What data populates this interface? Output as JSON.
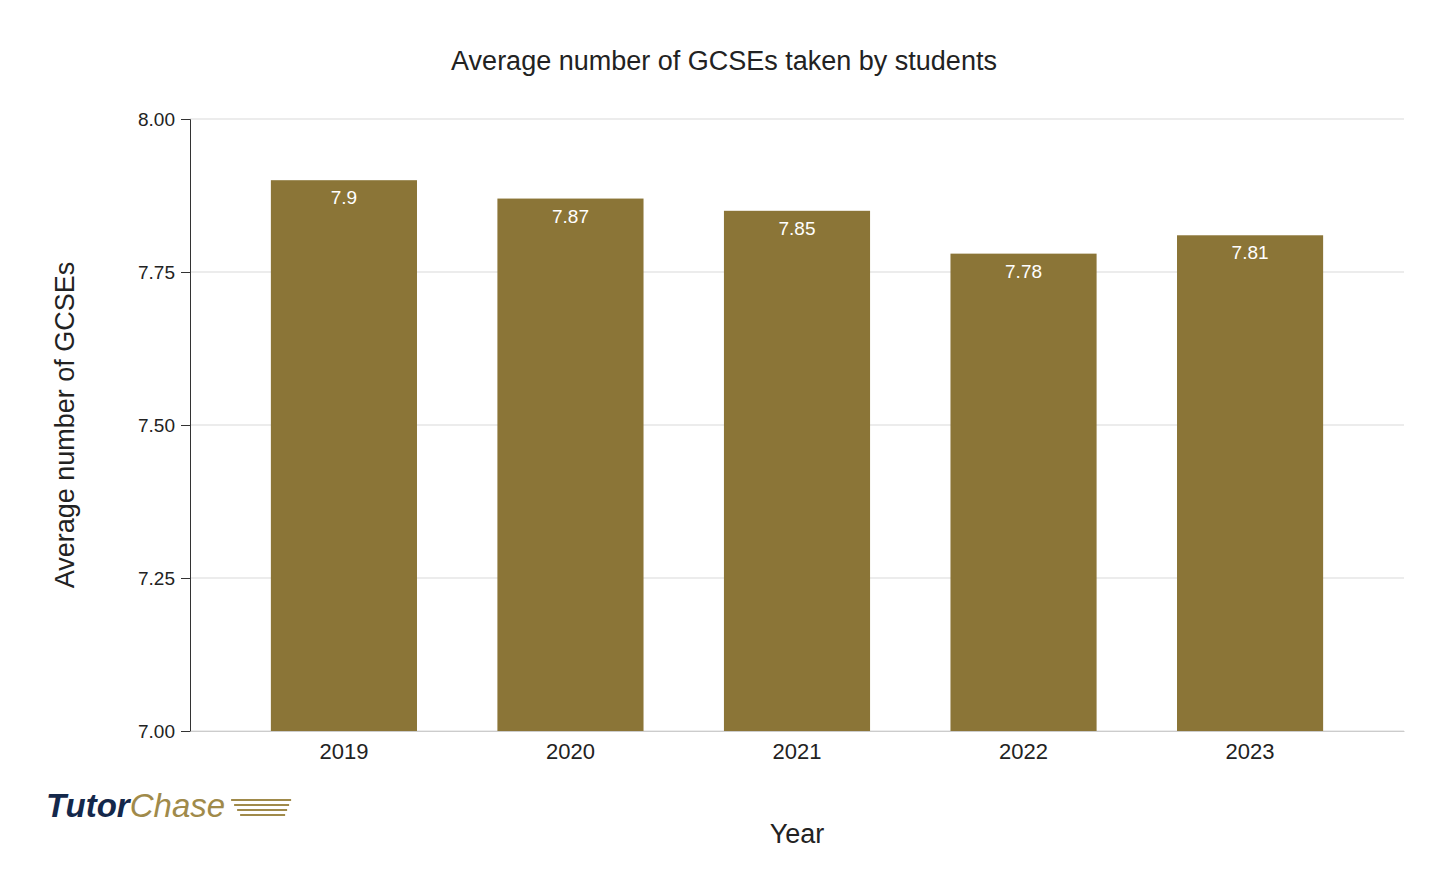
{
  "chart_data": {
    "type": "bar",
    "title": "Average number of GCSEs taken by students",
    "x_label": "Year",
    "y_label": "Average number of GCSEs",
    "categories": [
      "2019",
      "2020",
      "2021",
      "2022",
      "2023"
    ],
    "values": [
      7.9,
      7.87,
      7.85,
      7.78,
      7.81
    ],
    "color": "#8b7537",
    "ylim": [
      7,
      8
    ],
    "yticks": [
      {
        "value": 7,
        "label": "7.00"
      },
      {
        "value": 7.25,
        "label": "7.25"
      },
      {
        "value": 7.5,
        "label": "7.50"
      },
      {
        "value": 7.75,
        "label": "7.75"
      },
      {
        "value": 8,
        "label": "8.00"
      }
    ],
    "grid": true,
    "data_labels": true,
    "watermark": [
      "Tutor",
      "Chase"
    ]
  }
}
